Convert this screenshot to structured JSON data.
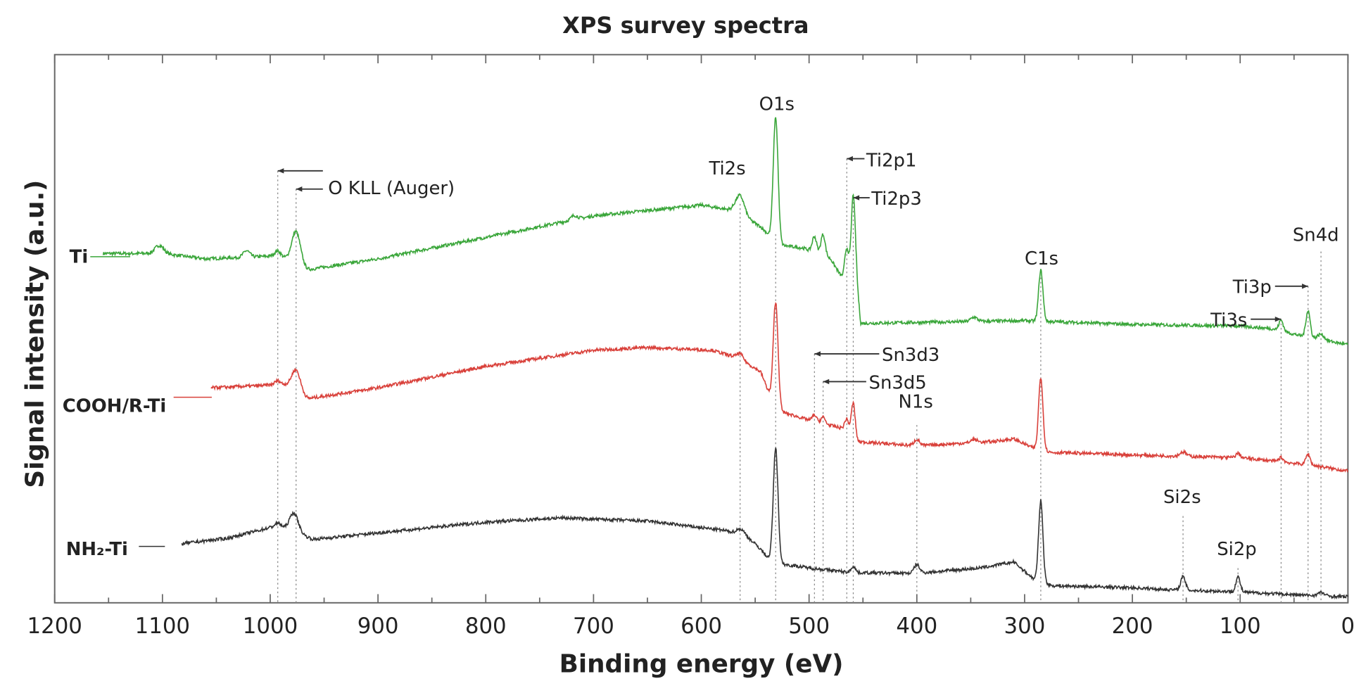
{
  "chart_data": {
    "type": "line",
    "title": "XPS survey spectra",
    "xlabel": "Binding energy (eV)",
    "ylabel": "Signal intensity (a.u.)",
    "xlim": [
      1200,
      0
    ],
    "x_reversed": true,
    "ylim": [
      0,
      102
    ],
    "x_ticks": [
      1200,
      1100,
      1000,
      900,
      800,
      700,
      600,
      500,
      400,
      300,
      200,
      100,
      0
    ],
    "x_minor_tick_step": 50,
    "y_ticks_labeled": false,
    "grid": false,
    "legend": "none; series labelled at the left of each trace",
    "series": [
      {
        "name": "Ti",
        "color": "#3aa63a",
        "x_range": [
          1155,
          0
        ],
        "baseline": [
          [
            1155,
            65
          ],
          [
            1100,
            65
          ],
          [
            1060,
            64
          ],
          [
            1000,
            64.5
          ],
          [
            985,
            64
          ],
          [
            965,
            62
          ],
          [
            900,
            64
          ],
          [
            800,
            68
          ],
          [
            700,
            72
          ],
          [
            600,
            74
          ],
          [
            570,
            73
          ],
          [
            545,
            70
          ],
          [
            535,
            68
          ],
          [
            525,
            66.5
          ],
          [
            505,
            66
          ],
          [
            480,
            64
          ],
          [
            468,
            60
          ],
          [
            456,
            60
          ],
          [
            452,
            52
          ],
          [
            300,
            52.5
          ],
          [
            200,
            51.8
          ],
          [
            100,
            51.5
          ],
          [
            70,
            51
          ],
          [
            40,
            49.5
          ],
          [
            20,
            48.8
          ],
          [
            0,
            48
          ]
        ],
        "peaks": [
          [
            1103,
            1.5,
            4
          ],
          [
            1022,
            1.2,
            3
          ],
          [
            993,
            1.2,
            3
          ],
          [
            976,
            6,
            4
          ],
          [
            718,
            0.8,
            3
          ],
          [
            564,
            3.5,
            4
          ],
          [
            531,
            23,
            2.2
          ],
          [
            495,
            3,
            2
          ],
          [
            487,
            4,
            2
          ],
          [
            465,
            6,
            2
          ],
          [
            459,
            16,
            1.8
          ],
          [
            347,
            0.8,
            3
          ],
          [
            285,
            9.5,
            2
          ],
          [
            62,
            2,
            2
          ],
          [
            37,
            5,
            2
          ],
          [
            25,
            1,
            3
          ]
        ]
      },
      {
        "name": "COOH/R-Ti",
        "color": "#d9413b",
        "x_range": [
          1055,
          0
        ],
        "baseline": [
          [
            1055,
            40
          ],
          [
            1000,
            40.5
          ],
          [
            985,
            40.5
          ],
          [
            965,
            38
          ],
          [
            900,
            40
          ],
          [
            800,
            44
          ],
          [
            700,
            47
          ],
          [
            650,
            47.5
          ],
          [
            590,
            47
          ],
          [
            565,
            45.5
          ],
          [
            545,
            43
          ],
          [
            535,
            38
          ],
          [
            525,
            35.5
          ],
          [
            500,
            34
          ],
          [
            470,
            32.5
          ],
          [
            455,
            30
          ],
          [
            400,
            29.2
          ],
          [
            330,
            30
          ],
          [
            310,
            30.5
          ],
          [
            292,
            28.8
          ],
          [
            275,
            28
          ],
          [
            200,
            27.5
          ],
          [
            100,
            27
          ],
          [
            60,
            26.2
          ],
          [
            30,
            25.5
          ],
          [
            0,
            24.5
          ]
        ],
        "peaks": [
          [
            993,
            0.8,
            3
          ],
          [
            976,
            4,
            4
          ],
          [
            564,
            1,
            3
          ],
          [
            531,
            19,
            2.2
          ],
          [
            495,
            1.2,
            2
          ],
          [
            487,
            1.2,
            2
          ],
          [
            465,
            2.5,
            2
          ],
          [
            459,
            6.5,
            1.8
          ],
          [
            400,
            1.2,
            2.5
          ],
          [
            347,
            0.6,
            3
          ],
          [
            285,
            13.5,
            2
          ],
          [
            153,
            0.8,
            3
          ],
          [
            102,
            0.8,
            2
          ],
          [
            62,
            0.8,
            2
          ],
          [
            37,
            2,
            2
          ]
        ]
      },
      {
        "name": "NH₂-Ti",
        "color": "#333333",
        "x_range": [
          1082,
          0
        ],
        "baseline": [
          [
            1082,
            11
          ],
          [
            1040,
            12
          ],
          [
            1000,
            14
          ],
          [
            990,
            14
          ],
          [
            975,
            13
          ],
          [
            960,
            11.8
          ],
          [
            900,
            13
          ],
          [
            800,
            15
          ],
          [
            730,
            15.8
          ],
          [
            650,
            15.2
          ],
          [
            580,
            13.5
          ],
          [
            560,
            12.8
          ],
          [
            545,
            10
          ],
          [
            538,
            8.4
          ],
          [
            525,
            7.2
          ],
          [
            500,
            6.5
          ],
          [
            460,
            5.6
          ],
          [
            400,
            5.5
          ],
          [
            340,
            6.5
          ],
          [
            310,
            7.6
          ],
          [
            292,
            4.5
          ],
          [
            275,
            3.2
          ],
          [
            200,
            2.8
          ],
          [
            160,
            2.4
          ],
          [
            110,
            2.1
          ],
          [
            50,
            1.5
          ],
          [
            0,
            1.1
          ]
        ],
        "peaks": [
          [
            993,
            0.8,
            3
          ],
          [
            978,
            3.5,
            4
          ],
          [
            564,
            0.8,
            3
          ],
          [
            531,
            21,
            2.2
          ],
          [
            459,
            1.2,
            2
          ],
          [
            400,
            1.6,
            2.5
          ],
          [
            285,
            15,
            2
          ],
          [
            153,
            2.5,
            2.2
          ],
          [
            102,
            2.8,
            2
          ],
          [
            25,
            0.6,
            3
          ]
        ]
      }
    ],
    "annotations": [
      {
        "label": "O KLL (Auger)",
        "x": [
          993,
          976
        ]
      },
      {
        "label": "Ti2s",
        "x": 564
      },
      {
        "label": "O1s",
        "x": 531
      },
      {
        "label": "Ti2p1",
        "x": 465
      },
      {
        "label": "Ti2p3",
        "x": 459
      },
      {
        "label": "Sn3d3",
        "x": 495
      },
      {
        "label": "Sn3d5",
        "x": 487
      },
      {
        "label": "N1s",
        "x": 400
      },
      {
        "label": "C1s",
        "x": 285
      },
      {
        "label": "Si2s",
        "x": 153
      },
      {
        "label": "Si2p",
        "x": 102
      },
      {
        "label": "Ti3s",
        "x": 62
      },
      {
        "label": "Ti3p",
        "x": 37
      },
      {
        "label": "Sn4d",
        "x": 25
      }
    ]
  }
}
